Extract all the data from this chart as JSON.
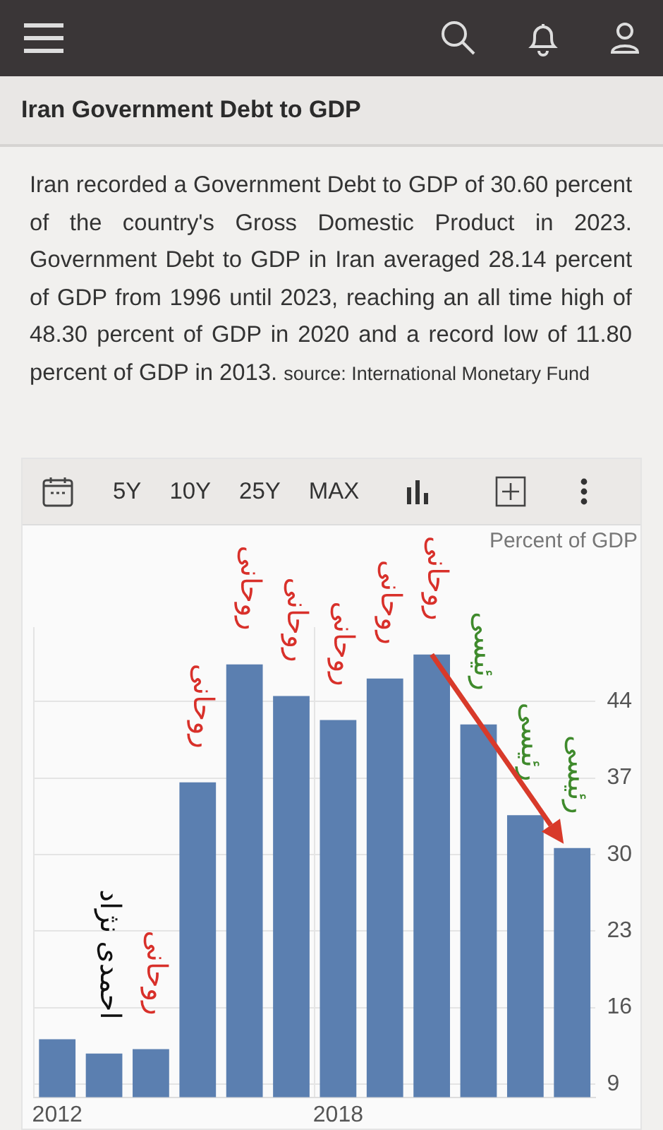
{
  "chart_data": {
    "type": "bar",
    "title": "Iran Government Debt to GDP",
    "subtitle": "Iran recorded a Government Debt to GDP of 30.60 percent of the country's Gross Domestic Product in 2023. Government Debt to GDP in Iran averaged 28.14 percent of GDP from 1996 until 2023, reaching an all time high of 48.30 percent of GDP in 2020 and a record low of 11.80 percent of GDP in 2013.",
    "ylabel": "Percent of GDP",
    "categories": [
      "2012",
      null,
      null,
      null,
      null,
      null,
      "2018",
      null,
      null,
      null,
      null,
      null
    ],
    "values": [
      13.1,
      11.8,
      12.2,
      36.6,
      47.4,
      44.5,
      42.3,
      46.1,
      48.3,
      41.9,
      33.6,
      30.6
    ],
    "color": "#5b7fb0",
    "ylim": [
      7.8,
      50.8
    ],
    "yticks": [
      9,
      16,
      23,
      30,
      37,
      44
    ],
    "grid": true,
    "annotations": [
      "5Y",
      "10Y",
      "25Y",
      "MAX",
      {
        "text": "احمدی نژاد",
        "y": 11.8
      },
      {
        "text": "روحانی",
        "y": 12.2
      },
      {
        "text": "روحانی",
        "y": 36.6
      },
      {
        "text": "روحانی",
        "y": 47.4
      },
      {
        "text": "روحانی",
        "y": 44.5
      },
      {
        "text": "روحانی",
        "y": 42.3
      },
      {
        "text": "روحانی",
        "y": 46.1
      },
      {
        "text": "روحانی",
        "y": 48.3
      },
      {
        "text": "رئیسی",
        "y": 41.9
      },
      {
        "text": "رئیسی",
        "y": 33.6
      },
      {
        "text": "رئیسی",
        "y": 30.6
      },
      "source: International Monetary Fund"
    ]
  }
}
